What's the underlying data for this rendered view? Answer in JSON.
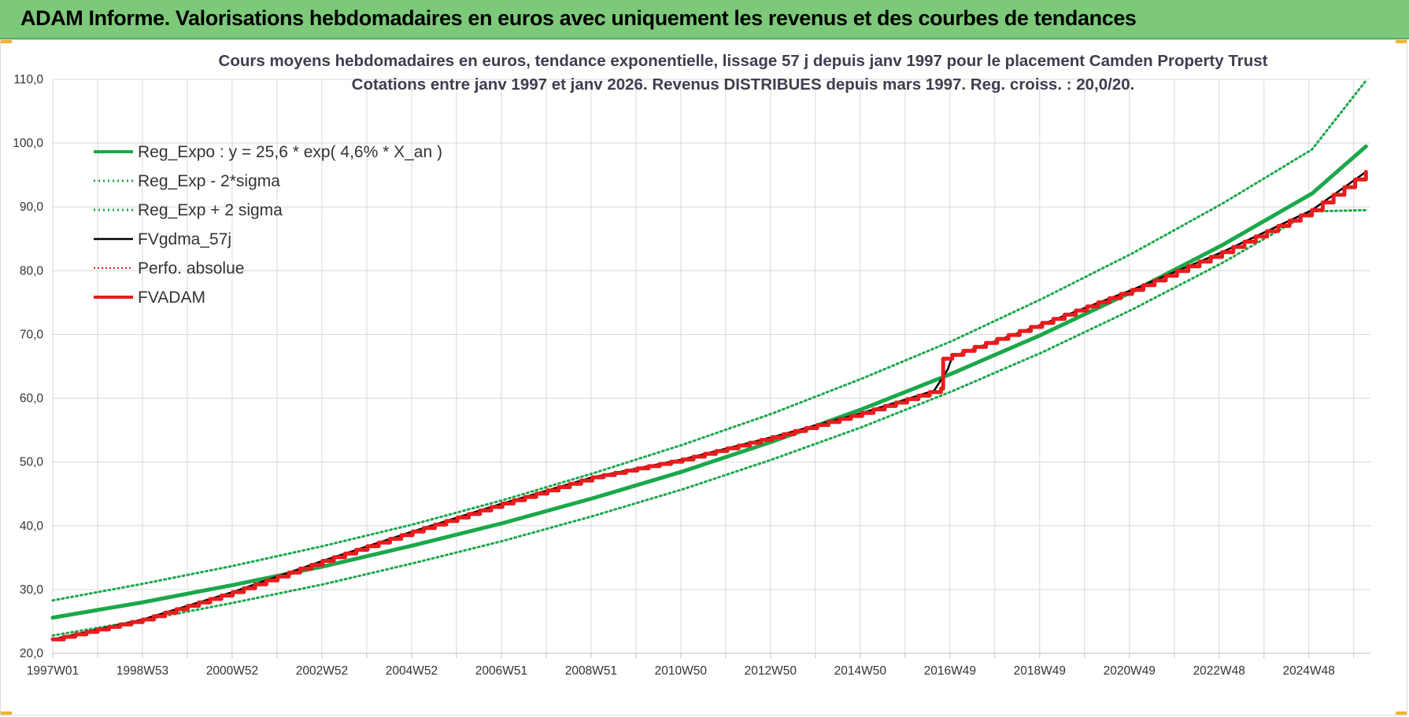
{
  "header": {
    "title": "ADAM Informe. Valorisations hebdomadaires en euros avec uniquement les revenus et des courbes de tendances"
  },
  "colors": {
    "header_bg": "#7dc97a",
    "reg_green": "#1aa84a",
    "red": "#e81c1c",
    "black": "#000000"
  },
  "chart_data": {
    "type": "line",
    "title_lines": [
      "Cours moyens hebdomadaires en euros, tendance exponentielle, lissage 57 j depuis janv 1997  pour le  placement Camden Property Trust",
      "Cotations entre janv 1997 et janv 2026. Revenus DISTRIBUES depuis mars 1997.  Reg. croiss. : 20,0/20."
    ],
    "x_tick_labels": [
      "1997W01",
      "1998W53",
      "2000W52",
      "2002W52",
      "2004W52",
      "2006W51",
      "2008W51",
      "2010W50",
      "2012W50",
      "2014W50",
      "2016W49",
      "2018W49",
      "2020W49",
      "2022W48",
      "2024W48"
    ],
    "xlim": [
      1997.0,
      2026.3
    ],
    "ylim": [
      20,
      110
    ],
    "y_ticks": [
      20,
      30,
      40,
      50,
      60,
      70,
      80,
      90,
      100,
      110
    ],
    "y_tick_labels": [
      "20,0",
      "30,0",
      "40,0",
      "50,0",
      "60,0",
      "70,0",
      "80,0",
      "90,0",
      "100,0",
      "110,0"
    ],
    "grid": true,
    "legend_position": "top-left",
    "series": [
      {
        "name": "Reg_Expo : y = 25,6 * exp( 4,6% *  X_an )",
        "style": "solid-thick",
        "color": "#1aa84a",
        "x": [
          1997.0,
          1999.0,
          2001.0,
          2003.0,
          2005.0,
          2007.0,
          2009.0,
          2011.0,
          2013.0,
          2015.0,
          2017.0,
          2019.0,
          2021.0,
          2023.0,
          2025.0,
          2026.2
        ],
        "y": [
          25.6,
          28.0,
          30.7,
          33.6,
          36.9,
          40.4,
          44.3,
          48.5,
          53.2,
          58.3,
          63.9,
          70.0,
          76.7,
          84.0,
          92.1,
          99.5
        ]
      },
      {
        "name": "Reg_Exp - 2*sigma",
        "style": "dotted",
        "color": "#1aa84a",
        "x": [
          1997.0,
          1999.0,
          2001.0,
          2003.0,
          2005.0,
          2007.0,
          2009.0,
          2011.0,
          2013.0,
          2015.0,
          2017.0,
          2019.0,
          2021.0,
          2023.0,
          2025.0,
          2026.2
        ],
        "y": [
          22.8,
          25.2,
          27.9,
          30.8,
          34.1,
          37.6,
          41.5,
          45.7,
          50.4,
          55.5,
          61.1,
          67.2,
          73.9,
          81.2,
          89.3,
          89.5
        ]
      },
      {
        "name": "Reg_Exp + 2 sigma",
        "style": "dotted",
        "color": "#1aa84a",
        "x": [
          1997.0,
          1999.0,
          2001.0,
          2003.0,
          2005.0,
          2007.0,
          2009.0,
          2011.0,
          2013.0,
          2015.0,
          2017.0,
          2019.0,
          2021.0,
          2023.0,
          2025.0,
          2026.2
        ],
        "y": [
          28.3,
          30.9,
          33.7,
          36.8,
          40.2,
          44.0,
          48.2,
          52.7,
          57.6,
          63.1,
          69.0,
          75.6,
          82.7,
          90.5,
          99.0,
          109.8
        ]
      },
      {
        "name": "FVgdma_57j",
        "style": "solid",
        "color": "#000000",
        "x": [
          1997.0,
          1999.0,
          2001.0,
          2003.0,
          2005.0,
          2007.0,
          2009.0,
          2011.0,
          2013.0,
          2015.0,
          2016.6,
          2016.9,
          2017.0,
          2019.0,
          2021.0,
          2023.0,
          2025.0,
          2026.2
        ],
        "y": [
          22.2,
          25.3,
          29.6,
          34.5,
          39.1,
          43.5,
          47.6,
          50.4,
          53.9,
          57.7,
          61.2,
          64.5,
          66.5,
          71.6,
          77.0,
          82.9,
          89.5,
          95.5
        ]
      },
      {
        "name": "Perfo. absolue",
        "style": "dotted-thin",
        "color": "#e81c1c",
        "x": [],
        "y": []
      },
      {
        "name": "FVADAM",
        "style": "solid-thick-stepped",
        "color": "#e81c1c",
        "x": [
          1997.0,
          1999.0,
          2001.0,
          2003.0,
          2005.0,
          2007.0,
          2009.0,
          2011.0,
          2013.0,
          2015.0,
          2016.75,
          2016.8,
          2017.0,
          2019.0,
          2021.0,
          2023.0,
          2025.0,
          2026.2
        ],
        "y": [
          22.2,
          25.3,
          29.6,
          34.5,
          39.1,
          43.5,
          47.6,
          50.4,
          53.9,
          57.7,
          61.5,
          66.2,
          66.8,
          71.8,
          77.0,
          82.9,
          89.5,
          95.5
        ]
      }
    ]
  }
}
